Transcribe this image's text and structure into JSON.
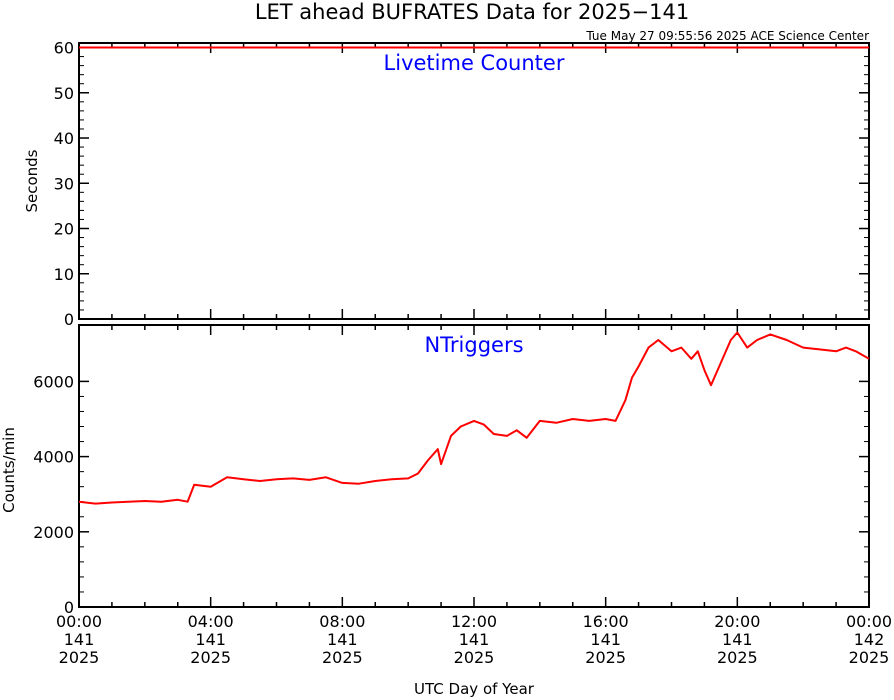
{
  "title": "LET ahead BUFRATES Data for 2025−141",
  "timestamp": "Tue May 27 09:55:56 2025 ACE Science Center",
  "xlabel": "UTC Day of Year",
  "x_ticks": [
    {
      "time": "00:00",
      "day": "141",
      "year": "2025"
    },
    {
      "time": "04:00",
      "day": "141",
      "year": "2025"
    },
    {
      "time": "08:00",
      "day": "141",
      "year": "2025"
    },
    {
      "time": "12:00",
      "day": "141",
      "year": "2025"
    },
    {
      "time": "16:00",
      "day": "141",
      "year": "2025"
    },
    {
      "time": "20:00",
      "day": "141",
      "year": "2025"
    },
    {
      "time": "00:00",
      "day": "142",
      "year": "2025"
    }
  ],
  "colors": {
    "series": "#ff0000",
    "panel_label": "#0000ff",
    "axes": "#000000"
  },
  "chart_data": [
    {
      "type": "line",
      "label": "Livetime Counter",
      "ylabel": "Seconds",
      "xlim": [
        "2025-141 00:00",
        "2025-142 00:00"
      ],
      "ylim": [
        0,
        61
      ],
      "y_ticks": [
        "0",
        "10",
        "20",
        "30",
        "40",
        "50",
        "60"
      ],
      "y_tick_values": [
        0,
        10,
        20,
        30,
        40,
        50,
        60
      ],
      "x_hours": [
        0,
        24
      ],
      "values": [
        60,
        60
      ]
    },
    {
      "type": "line",
      "label": "NTriggers",
      "ylabel": "Counts/min",
      "xlim": [
        "2025-141 00:00",
        "2025-142 00:00"
      ],
      "ylim": [
        0,
        7500
      ],
      "y_ticks": [
        "0",
        "2000",
        "4000",
        "6000"
      ],
      "y_tick_values": [
        0,
        2000,
        4000,
        6000
      ],
      "x_hours": [
        0,
        0.5,
        1,
        1.5,
        2,
        2.5,
        3,
        3.3,
        3.5,
        4,
        4.5,
        5,
        5.5,
        6,
        6.5,
        7,
        7.5,
        8,
        8.5,
        9,
        9.5,
        10,
        10.3,
        10.6,
        10.9,
        11,
        11.3,
        11.6,
        12,
        12.3,
        12.6,
        13,
        13.3,
        13.6,
        14,
        14.5,
        15,
        15.5,
        16,
        16.3,
        16.6,
        16.8,
        17,
        17.3,
        17.6,
        18,
        18.3,
        18.6,
        18.8,
        19,
        19.2,
        19.5,
        19.8,
        20,
        20.3,
        20.6,
        21,
        21.5,
        22,
        22.5,
        23,
        23.3,
        23.6,
        24
      ],
      "values": [
        2800,
        2750,
        2780,
        2800,
        2820,
        2800,
        2850,
        2800,
        3250,
        3200,
        3450,
        3400,
        3350,
        3400,
        3420,
        3380,
        3450,
        3300,
        3280,
        3350,
        3400,
        3420,
        3550,
        3900,
        4200,
        3800,
        4550,
        4800,
        4950,
        4850,
        4600,
        4550,
        4700,
        4500,
        4950,
        4900,
        5000,
        4950,
        5000,
        4950,
        5500,
        6100,
        6400,
        6900,
        7100,
        6800,
        6900,
        6600,
        6800,
        6300,
        5900,
        6500,
        7100,
        7300,
        6900,
        7100,
        7250,
        7100,
        6900,
        6850,
        6800,
        6900,
        6800,
        6600
      ]
    }
  ]
}
